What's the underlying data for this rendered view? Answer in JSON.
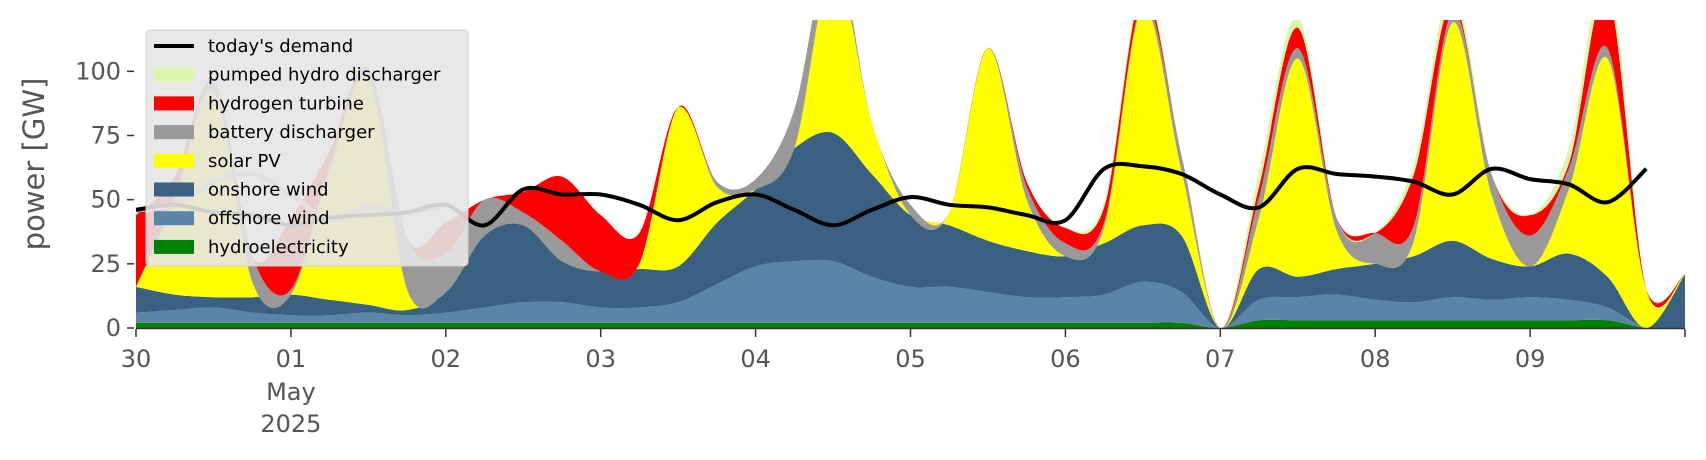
{
  "chart_data": {
    "type": "area",
    "ylabel": "power [GW]",
    "ylim": [
      0,
      120
    ],
    "yticks": [
      0,
      25,
      50,
      75,
      100
    ],
    "xlim": [
      "2025-04-30T00:00",
      "2025-05-10T00:00"
    ],
    "xticks": [
      {
        "date": "2025-04-30",
        "label": "30",
        "sub1": "",
        "sub2": ""
      },
      {
        "date": "2025-05-01",
        "label": "01",
        "sub1": "May",
        "sub2": "2025"
      },
      {
        "date": "2025-05-02",
        "label": "02",
        "sub1": "",
        "sub2": ""
      },
      {
        "date": "2025-05-03",
        "label": "03",
        "sub1": "",
        "sub2": ""
      },
      {
        "date": "2025-05-04",
        "label": "04",
        "sub1": "",
        "sub2": ""
      },
      {
        "date": "2025-05-05",
        "label": "05",
        "sub1": "",
        "sub2": ""
      },
      {
        "date": "2025-05-06",
        "label": "06",
        "sub1": "",
        "sub2": ""
      },
      {
        "date": "2025-05-07",
        "label": "07",
        "sub1": "",
        "sub2": ""
      },
      {
        "date": "2025-05-08",
        "label": "08",
        "sub1": "",
        "sub2": ""
      },
      {
        "date": "2025-05-09",
        "label": "09",
        "sub1": "",
        "sub2": ""
      },
      {
        "date": "2025-05-10",
        "label": "",
        "sub1": "",
        "sub2": ""
      }
    ],
    "grid": false,
    "legend_position": "top-left",
    "x": [
      "2025-04-30T00:00",
      "2025-04-30T06:00",
      "2025-04-30T12:00",
      "2025-04-30T18:00",
      "2025-05-01T00:00",
      "2025-05-01T06:00",
      "2025-05-01T12:00",
      "2025-05-01T18:00",
      "2025-05-02T00:00",
      "2025-05-02T06:00",
      "2025-05-02T12:00",
      "2025-05-02T18:00",
      "2025-05-03T00:00",
      "2025-05-03T06:00",
      "2025-05-03T12:00",
      "2025-05-03T18:00",
      "2025-05-04T00:00",
      "2025-05-04T06:00",
      "2025-05-04T12:00",
      "2025-05-04T18:00",
      "2025-05-05T00:00",
      "2025-05-05T06:00",
      "2025-05-05T12:00",
      "2025-05-05T18:00",
      "2025-05-06T00:00",
      "2025-05-06T06:00",
      "2025-05-06T12:00",
      "2025-05-06T18:00",
      "2025-05-07T00:00",
      "2025-05-07T06:00",
      "2025-05-07T12:00",
      "2025-05-07T18:00",
      "2025-05-08T00:00",
      "2025-05-08T06:00",
      "2025-05-08T12:00",
      "2025-05-08T18:00",
      "2025-05-09T00:00",
      "2025-05-09T06:00",
      "2025-05-09T12:00",
      "2025-05-09T18:00",
      "2025-05-10T00:00"
    ],
    "series": [
      {
        "name": "hydroelectricity",
        "color": "#008000",
        "values": [
          2,
          2,
          2,
          2,
          2,
          2,
          2,
          2,
          2,
          2,
          2,
          2,
          2,
          2,
          2,
          2,
          2,
          2,
          2,
          2,
          2,
          2,
          2,
          2,
          2,
          2,
          2,
          2,
          0,
          3,
          3,
          3,
          3,
          3,
          3,
          3,
          3,
          3,
          3,
          0,
          0
        ]
      },
      {
        "name": "offshore wind",
        "color": "#5b84a8",
        "values": [
          4,
          5,
          6,
          4,
          3,
          3,
          4,
          3,
          4,
          6,
          8,
          8,
          6,
          6,
          8,
          15,
          22,
          24,
          24,
          18,
          14,
          14,
          12,
          10,
          10,
          11,
          16,
          12,
          0,
          8,
          9,
          10,
          8,
          7,
          9,
          8,
          9,
          8,
          5,
          0,
          0
        ]
      },
      {
        "name": "onshore wind",
        "color": "#3b6182",
        "values": [
          10,
          6,
          4,
          6,
          8,
          6,
          3,
          2,
          8,
          28,
          30,
          16,
          14,
          15,
          14,
          24,
          30,
          44,
          50,
          40,
          28,
          24,
          20,
          18,
          16,
          20,
          22,
          22,
          0,
          12,
          8,
          10,
          14,
          18,
          22,
          16,
          12,
          18,
          12,
          0,
          21
        ]
      },
      {
        "name": "solar PV",
        "color": "#ffff00",
        "values": [
          0,
          36,
          80,
          6,
          0,
          50,
          88,
          8,
          0,
          0,
          0,
          0,
          0,
          2,
          62,
          14,
          0,
          0,
          65,
          20,
          0,
          5,
          75,
          20,
          0,
          6,
          85,
          25,
          0,
          20,
          85,
          15,
          0,
          6,
          85,
          25,
          0,
          25,
          85,
          15,
          0
        ]
      },
      {
        "name": "battery discharger",
        "color": "#999999",
        "values": [
          0,
          2,
          4,
          10,
          2,
          2,
          4,
          20,
          15,
          14,
          5,
          8,
          0,
          0,
          0,
          2,
          4,
          15,
          8,
          0,
          4,
          0,
          0,
          5,
          5,
          2,
          2,
          6,
          0,
          8,
          4,
          5,
          12,
          6,
          4,
          8,
          12,
          8,
          4,
          0,
          0
        ]
      },
      {
        "name": "hydrogen turbine",
        "color": "#ff0000",
        "values": [
          28,
          8,
          0,
          0,
          28,
          6,
          0,
          0,
          12,
          0,
          8,
          25,
          22,
          12,
          0,
          0,
          0,
          0,
          0,
          0,
          0,
          0,
          0,
          2,
          6,
          6,
          4,
          0,
          0,
          4,
          8,
          0,
          0,
          20,
          4,
          0,
          8,
          2,
          22,
          0,
          0
        ]
      },
      {
        "name": "pumped hydro discharger",
        "color": "#d9f7a8",
        "values": [
          0,
          0,
          0,
          0,
          0,
          0,
          0,
          0,
          0,
          0,
          0,
          0,
          0,
          0,
          0,
          0,
          0,
          0,
          0,
          0,
          0,
          0,
          0,
          0,
          0,
          2,
          4,
          0,
          0,
          6,
          4,
          0,
          0,
          4,
          6,
          0,
          0,
          6,
          8,
          0,
          0
        ]
      }
    ],
    "demand": {
      "name": "today's demand",
      "color": "#000000",
      "values": [
        46,
        48,
        45,
        44,
        40,
        43,
        44,
        45,
        48,
        40,
        54,
        52,
        52,
        48,
        42,
        49,
        52,
        46,
        40,
        46,
        51,
        48,
        47,
        44,
        42,
        62,
        63,
        60,
        52,
        47,
        62,
        60,
        59,
        57,
        52,
        62,
        58,
        56,
        49,
        62,
        null
      ]
    },
    "demand_faded": {
      "color": "#b3b3b3",
      "values": [
        46,
        48,
        57,
        60,
        52,
        42,
        47,
        45,
        48,
        null,
        null,
        null,
        null,
        null,
        null,
        null,
        null,
        null,
        null,
        null,
        null,
        null,
        null,
        null,
        null,
        null,
        null,
        null,
        null,
        null,
        null,
        null,
        null,
        null,
        null,
        null,
        null,
        null,
        null,
        null,
        null
      ]
    },
    "legend_order": [
      "today's demand",
      "pumped hydro discharger",
      "hydrogen turbine",
      "battery discharger",
      "solar PV",
      "onshore wind",
      "offshore wind",
      "hydroelectricity"
    ]
  }
}
